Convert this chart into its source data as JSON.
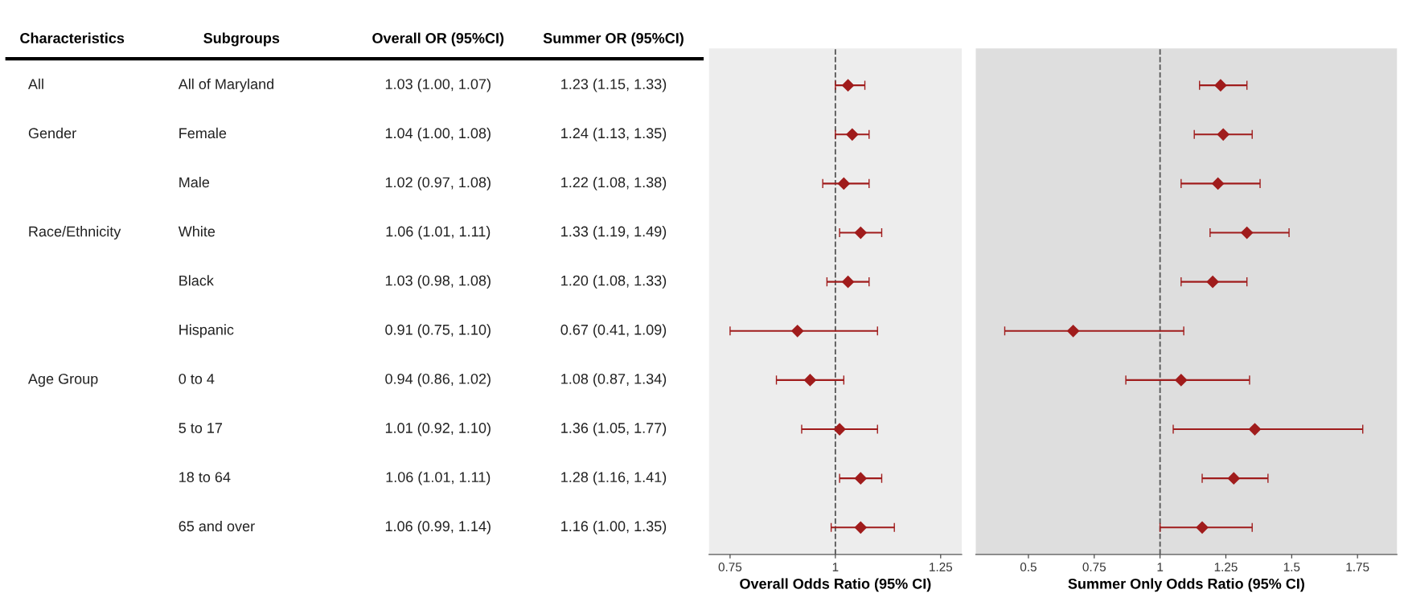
{
  "chart_data": [
    {
      "type": "scatter",
      "orientation": "horizontal",
      "xlabel": "Overall Odds Ratio (95% CI)",
      "categories": [
        "All of Maryland",
        "Female",
        "Male",
        "White",
        "Black",
        "Hispanic",
        "0 to 4",
        "5 to 17",
        "18 to 64",
        "65 and over"
      ],
      "series": [
        {
          "color": "#a01c1c",
          "values": [
            1.03,
            1.04,
            1.02,
            1.06,
            1.03,
            0.91,
            0.94,
            1.01,
            1.06,
            1.06
          ],
          "errors": [
            [
              1.0,
              1.07
            ],
            [
              1.0,
              1.08
            ],
            [
              0.97,
              1.08
            ],
            [
              1.01,
              1.11
            ],
            [
              0.98,
              1.08
            ],
            [
              0.75,
              1.1
            ],
            [
              0.86,
              1.02
            ],
            [
              0.92,
              1.1
            ],
            [
              1.01,
              1.11
            ],
            [
              0.99,
              1.14
            ]
          ],
          "value_labels": [
            "1.03 (1.00, 1.07)",
            "1.04 (1.00, 1.08)",
            "1.02 (0.97, 1.08)",
            "1.06 (1.01, 1.11)",
            "1.03 (0.98, 1.08)",
            "0.91 (0.75, 1.10)",
            "0.94 (0.86, 1.02)",
            "1.01 (0.92, 1.10)",
            "1.06 (1.01, 1.11)",
            "1.06 (0.99, 1.14)"
          ]
        }
      ],
      "xlim": [
        0.7,
        1.3
      ],
      "xticks": [
        0.75,
        1,
        1.25
      ],
      "tick_labels": "x",
      "marker": "diamond",
      "grid": false,
      "ref_lines": [
        {
          "axis": "x",
          "value": 1,
          "line_style": "dashed",
          "color": "#555555"
        }
      ],
      "annotations": [
        "Characteristics",
        "Subgroups",
        "Overall OR (95%CI)",
        "Summer OR (95%CI)",
        "All",
        "Gender",
        "Race/Ethnicity",
        "Age Group"
      ]
    },
    {
      "type": "scatter",
      "orientation": "horizontal",
      "xlabel": "Summer Only Odds Ratio (95% CI)",
      "categories": [
        null,
        null,
        null,
        null,
        null,
        null,
        null,
        null,
        null,
        null
      ],
      "series": [
        {
          "color": "#a01c1c",
          "values": [
            1.23,
            1.24,
            1.22,
            1.33,
            1.2,
            0.67,
            1.08,
            1.36,
            1.28,
            1.16
          ],
          "errors": [
            [
              1.15,
              1.33
            ],
            [
              1.13,
              1.35
            ],
            [
              1.08,
              1.38
            ],
            [
              1.19,
              1.49
            ],
            [
              1.08,
              1.33
            ],
            [
              0.41,
              1.09
            ],
            [
              0.87,
              1.34
            ],
            [
              1.05,
              1.77
            ],
            [
              1.16,
              1.41
            ],
            [
              1.0,
              1.35
            ]
          ],
          "value_labels": [
            "1.23 (1.15, 1.33)",
            "1.24 (1.13, 1.35)",
            "1.22 (1.08, 1.38)",
            "1.33 (1.19, 1.49)",
            "1.20 (1.08, 1.33)",
            "0.67 (0.41, 1.09)",
            "1.08 (0.87, 1.34)",
            "1.36 (1.05, 1.77)",
            "1.28 (1.16, 1.41)",
            "1.16 (1.00, 1.35)"
          ]
        }
      ],
      "xlim": [
        0.3,
        1.9
      ],
      "xticks": [
        0.5,
        0.75,
        1,
        1.25,
        1.5,
        1.75
      ],
      "tick_labels": "x",
      "marker": "diamond",
      "grid": false,
      "ref_lines": [
        {
          "axis": "x",
          "value": 1,
          "line_style": "dashed",
          "color": "#555555"
        }
      ]
    }
  ]
}
